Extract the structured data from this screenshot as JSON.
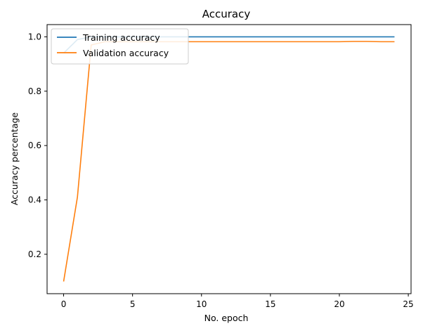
{
  "chart_data": {
    "type": "line",
    "title": "Accuracy",
    "xlabel": "No. epoch",
    "ylabel": "Accuracy percentage",
    "xlim": [
      -1.2,
      25.2
    ],
    "ylim": [
      0.055,
      1.045
    ],
    "xticks": [
      0,
      5,
      10,
      15,
      20,
      25
    ],
    "yticks": [
      0.2,
      0.4,
      0.6,
      0.8,
      1.0
    ],
    "ytick_labels": [
      "0.2",
      "0.4",
      "0.6",
      "0.8",
      "1.0"
    ],
    "legend_position": "top-left",
    "grid": false,
    "x": [
      0,
      1,
      2,
      3,
      4,
      5,
      6,
      7,
      8,
      9,
      10,
      11,
      12,
      13,
      14,
      15,
      16,
      17,
      18,
      19,
      20,
      21,
      22,
      23,
      24
    ],
    "series": [
      {
        "name": "Training accuracy",
        "color": "#1f77b4",
        "values": [
          0.94,
          0.99,
          1.0,
          1.0,
          1.0,
          1.0,
          1.0,
          1.0,
          1.0,
          1.0,
          1.0,
          1.0,
          1.0,
          1.0,
          1.0,
          1.0,
          1.0,
          1.0,
          1.0,
          1.0,
          1.0,
          1.0,
          1.0,
          1.0,
          1.0
        ]
      },
      {
        "name": "Validation accuracy",
        "color": "#ff7f0e",
        "values": [
          0.1,
          0.41,
          0.97,
          0.982,
          0.982,
          0.982,
          0.982,
          0.982,
          0.982,
          0.982,
          0.982,
          0.982,
          0.982,
          0.982,
          0.982,
          0.982,
          0.982,
          0.982,
          0.982,
          0.982,
          0.982,
          0.983,
          0.983,
          0.982,
          0.982
        ]
      }
    ]
  }
}
